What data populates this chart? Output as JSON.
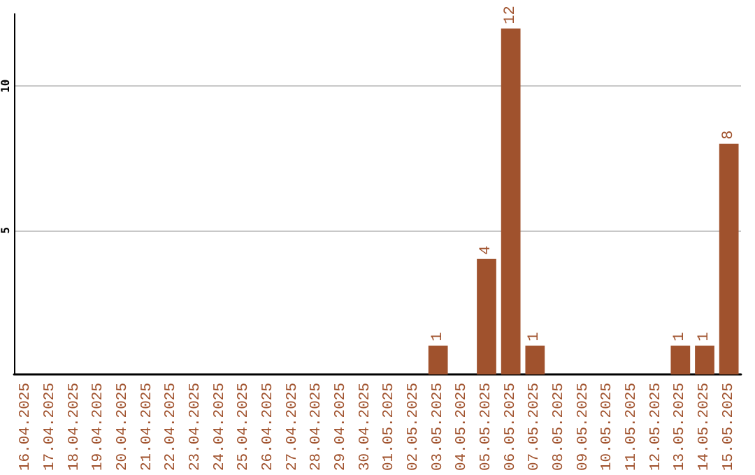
{
  "chart_data": {
    "type": "bar",
    "categories": [
      "16.04.2025",
      "17.04.2025",
      "18.04.2025",
      "19.04.2025",
      "20.04.2025",
      "21.04.2025",
      "22.04.2025",
      "23.04.2025",
      "24.04.2025",
      "25.04.2025",
      "26.04.2025",
      "27.04.2025",
      "28.04.2025",
      "29.04.2025",
      "30.04.2025",
      "01.05.2025",
      "02.05.2025",
      "03.05.2025",
      "04.05.2025",
      "05.05.2025",
      "06.05.2025",
      "07.05.2025",
      "08.05.2025",
      "09.05.2025",
      "10.05.2025",
      "11.05.2025",
      "12.05.2025",
      "13.05.2025",
      "14.05.2025",
      "15.05.2025"
    ],
    "values": [
      0,
      0,
      0,
      0,
      0,
      0,
      0,
      0,
      0,
      0,
      0,
      0,
      0,
      0,
      0,
      0,
      0,
      1,
      0,
      4,
      12,
      1,
      0,
      0,
      0,
      0,
      0,
      1,
      1,
      8
    ],
    "value_labels": [
      null,
      null,
      null,
      null,
      null,
      null,
      null,
      null,
      null,
      null,
      null,
      null,
      null,
      null,
      null,
      null,
      null,
      "1",
      null,
      "4",
      "12",
      "1",
      null,
      null,
      null,
      null,
      null,
      "1",
      "1",
      "8"
    ],
    "color": "#a0522d",
    "ylim": [
      0,
      12.5
    ],
    "yticks": [
      5,
      10
    ],
    "grid": "y"
  }
}
